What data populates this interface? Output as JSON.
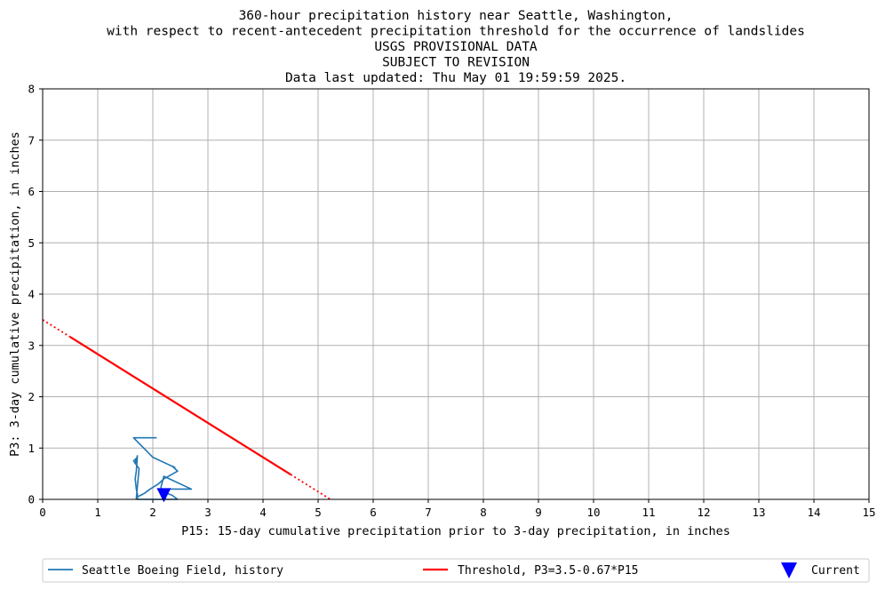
{
  "chart_data": {
    "type": "line",
    "title_lines": [
      "360-hour precipitation history near Seattle, Washington,",
      "with respect to recent-antecedent precipitation threshold for the occurrence of landslides",
      "USGS PROVISIONAL DATA",
      "SUBJECT TO REVISION",
      "Data last updated: Thu May 01 19:59:59 2025."
    ],
    "xlabel": "P15: 15-day cumulative precipitation prior to 3-day precipitation, in inches",
    "ylabel": "P3: 3-day cumulative precipitation, in inches",
    "xlim": [
      0,
      15
    ],
    "ylim": [
      0,
      8
    ],
    "xticks": [
      "0",
      "1",
      "2",
      "3",
      "4",
      "5",
      "6",
      "7",
      "8",
      "9",
      "10",
      "11",
      "12",
      "13",
      "14",
      "15"
    ],
    "yticks": [
      "0",
      "1",
      "2",
      "3",
      "4",
      "5",
      "6",
      "7",
      "8"
    ],
    "grid": true,
    "legend_placement": "bottom, below plot",
    "series": [
      {
        "name": "Seattle Boeing Field, history",
        "color": "#1f77b4",
        "x": [
          2.07,
          1.65,
          2.0,
          2.4,
          2.35,
          2.45,
          2.4,
          2.2,
          2.1,
          1.95,
          1.85,
          1.78,
          1.72,
          1.7,
          1.75,
          1.65,
          1.7,
          1.68,
          1.72,
          1.7,
          1.68,
          1.7,
          1.72,
          1.72,
          2.45,
          2.35,
          2.3,
          2.1,
          2.7,
          2.2,
          2.15,
          2.15,
          2.2
        ],
        "y": [
          1.2,
          1.2,
          0.82,
          0.62,
          0.65,
          0.55,
          0.52,
          0.4,
          0.3,
          0.2,
          0.12,
          0.08,
          0.05,
          0.02,
          0.6,
          0.75,
          0.8,
          0.7,
          0.85,
          0.55,
          0.4,
          0.2,
          0.1,
          0.0,
          0.0,
          0.08,
          0.1,
          0.2,
          0.2,
          0.45,
          0.25,
          0.1,
          0.08
        ]
      },
      {
        "name": "Threshold, P3=3.5-0.67*P15",
        "color": "#ff0000",
        "x": [
          0.5,
          4.5
        ],
        "y": [
          3.165,
          0.485
        ],
        "extension_x": [
          [
            0.0,
            0.5
          ],
          [
            4.5,
            5.224
          ]
        ],
        "extension_y": [
          [
            3.5,
            3.165
          ],
          [
            0.485,
            0.0
          ]
        ]
      },
      {
        "name": "Current",
        "color": "#0000ff",
        "marker": "triangle-down",
        "x": [
          2.2
        ],
        "y": [
          0.08
        ]
      }
    ]
  },
  "legend": {
    "history_label": "Seattle Boeing Field, history",
    "threshold_label": "Threshold, P3=3.5-0.67*P15",
    "current_label": "Current"
  }
}
